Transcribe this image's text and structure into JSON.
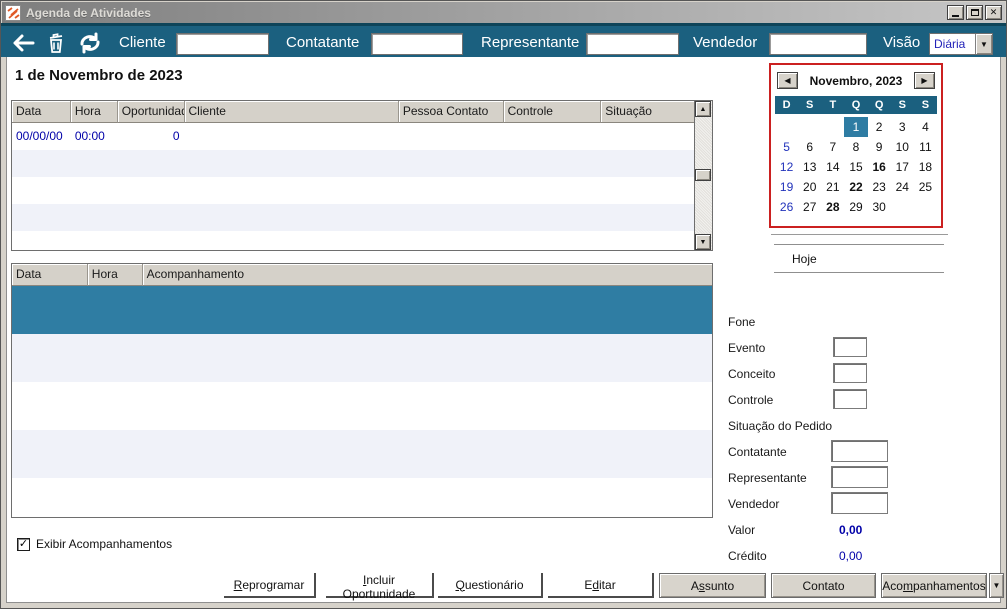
{
  "window": {
    "title": "Agenda de Atividades"
  },
  "icons": {
    "close": "✕",
    "dropdown": "▼",
    "scroll_up": "▲",
    "scroll_down": "▼",
    "cal_prev": "◀",
    "cal_next": "▶",
    "check": "✓"
  },
  "toolbar": {
    "fields": [
      {
        "label": "Cliente",
        "value": ""
      },
      {
        "label": "Contatante",
        "value": ""
      },
      {
        "label": "Representante",
        "value": ""
      },
      {
        "label": "Vendedor",
        "value": ""
      }
    ],
    "visao": {
      "label": "Visão",
      "value": "Diária"
    }
  },
  "date_heading": "1 de Novembro de 2023",
  "appointments": {
    "columns": [
      "Data",
      "Hora",
      "Oportunidade",
      "Cliente",
      "Pessoa Contato",
      "Controle",
      "Situação"
    ],
    "rows": [
      [
        "00/00/00",
        "00:00",
        "0",
        "",
        "",
        "",
        ""
      ]
    ]
  },
  "followups": {
    "columns": [
      "Data",
      "Hora",
      "Acompanhamento"
    ]
  },
  "calendar": {
    "month_label": "Novembro, 2023",
    "day_headers": [
      "D",
      "S",
      "T",
      "Q",
      "Q",
      "S",
      "S"
    ],
    "weeks": [
      [
        {
          "d": ""
        },
        {
          "d": ""
        },
        {
          "d": ""
        },
        {
          "d": "1",
          "sel": true
        },
        {
          "d": "2"
        },
        {
          "d": "3"
        },
        {
          "d": "4"
        }
      ],
      [
        {
          "d": "5",
          "sun": true
        },
        {
          "d": "6"
        },
        {
          "d": "7"
        },
        {
          "d": "8"
        },
        {
          "d": "9"
        },
        {
          "d": "10"
        },
        {
          "d": "11"
        }
      ],
      [
        {
          "d": "12",
          "sun": true
        },
        {
          "d": "13"
        },
        {
          "d": "14"
        },
        {
          "d": "15"
        },
        {
          "d": "16",
          "bold": true
        },
        {
          "d": "17"
        },
        {
          "d": "18"
        }
      ],
      [
        {
          "d": "19",
          "sun": true
        },
        {
          "d": "20"
        },
        {
          "d": "21"
        },
        {
          "d": "22",
          "bold": true
        },
        {
          "d": "23"
        },
        {
          "d": "24"
        },
        {
          "d": "25"
        }
      ],
      [
        {
          "d": "26",
          "sun": true
        },
        {
          "d": "27"
        },
        {
          "d": "28",
          "bold": true
        },
        {
          "d": "29"
        },
        {
          "d": "30"
        },
        {
          "d": ""
        },
        {
          "d": ""
        }
      ]
    ],
    "today_button": "Hoje"
  },
  "details": {
    "fields": [
      {
        "name": "fone",
        "label": "Fone",
        "control": "none"
      },
      {
        "name": "evento",
        "label": "Evento",
        "control": "small"
      },
      {
        "name": "conceito",
        "label": "Conceito",
        "control": "small"
      },
      {
        "name": "controle",
        "label": "Controle",
        "control": "small"
      },
      {
        "name": "situacao-do-pedido",
        "label": "Situação do Pedido",
        "control": "none"
      },
      {
        "name": "contatante",
        "label": "Contatante",
        "control": "medium"
      },
      {
        "name": "representante",
        "label": "Representante",
        "control": "medium"
      },
      {
        "name": "vendedor",
        "label": "Vendedor",
        "control": "medium"
      },
      {
        "name": "valor",
        "label": "Valor",
        "control": "value",
        "value": "0,00",
        "bold": true
      },
      {
        "name": "credito",
        "label": "Crédito",
        "control": "value",
        "value": "0,00",
        "bold": false
      }
    ]
  },
  "checkbox": {
    "label": "Exibir Acompanhamentos",
    "checked": true
  },
  "buttons": [
    {
      "name": "reprogramar",
      "pre": "",
      "key": "R",
      "post": "eprogramar"
    },
    {
      "name": "incluir-oportunidade",
      "pre": "",
      "key": "I",
      "post": "ncluir Oportunidade"
    },
    {
      "name": "questionario",
      "pre": "",
      "key": "Q",
      "post": "uestionário"
    },
    {
      "name": "editar",
      "pre": "E",
      "key": "d",
      "post": "itar"
    },
    {
      "name": "assunto",
      "pre": "A",
      "key": "s",
      "post": "sunto"
    },
    {
      "name": "contato",
      "pre": "Contato",
      "key": "",
      "post": ""
    },
    {
      "name": "acompanhamentos",
      "pre": "Aco",
      "key": "m",
      "post": "panhamentos"
    }
  ],
  "colors": {
    "toolbar_teal": "#1B607F",
    "selection_teal": "#2F7DA3",
    "value_navy": "#0000A8",
    "calendar_border_red": "#CB2020",
    "alt_row": "#F0F2F9"
  }
}
